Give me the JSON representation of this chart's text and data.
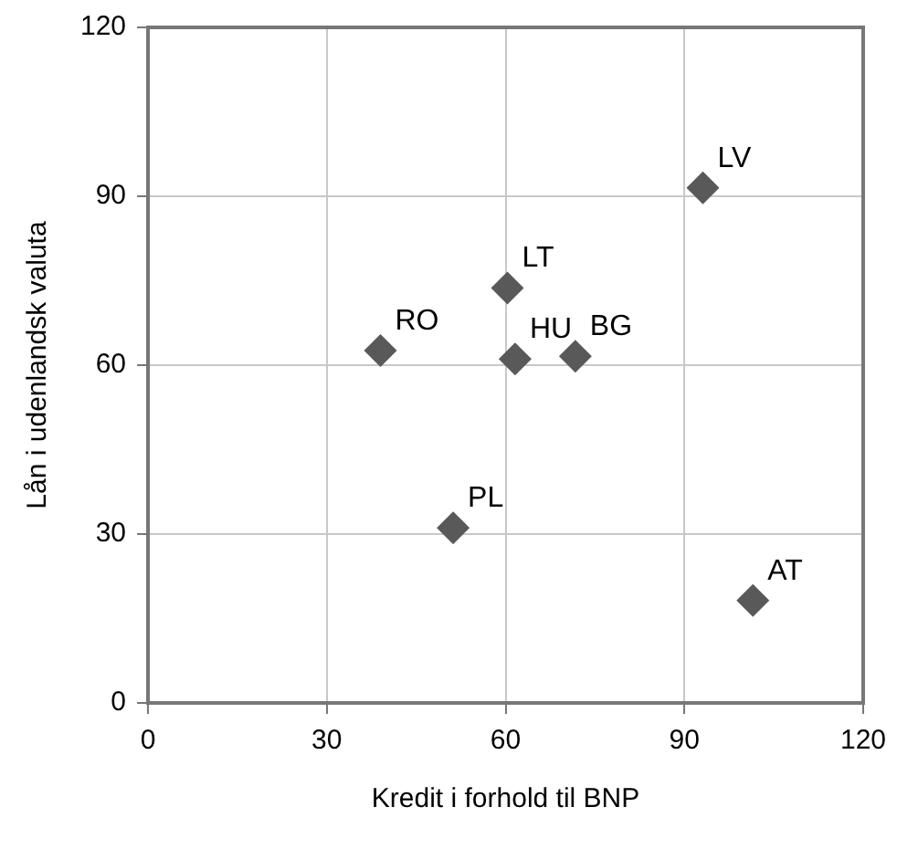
{
  "chart_data": {
    "type": "scatter",
    "xlabel": "Kredit i forhold til BNP",
    "ylabel": "Lån i udenlandsk valuta",
    "x": [
      93.1,
      60.3,
      39,
      61.6,
      71.7,
      51.2,
      101.5
    ],
    "series": [
      {
        "color": "#595959",
        "values": [
          91.5,
          73.7,
          62.6,
          61.1,
          61.6,
          31.1,
          18.2
        ]
      }
    ],
    "xlim": [
      0,
      120
    ],
    "ylim": [
      0,
      120
    ],
    "xticks": [
      0,
      30,
      60,
      90,
      120
    ],
    "yticks": [
      0,
      30,
      60,
      90,
      120
    ],
    "grid": true,
    "legend": false,
    "marker": "diamond",
    "annotations": [
      {
        "text": "LV",
        "x": 93.1,
        "y": 91.5
      },
      {
        "text": "LT",
        "x": 60.3,
        "y": 73.7
      },
      {
        "text": "RO",
        "x": 39,
        "y": 62.6
      },
      {
        "text": "HU",
        "x": 61.6,
        "y": 61.1
      },
      {
        "text": "BG",
        "x": 71.7,
        "y": 61.6
      },
      {
        "text": "PL",
        "x": 51.2,
        "y": 31.1
      },
      {
        "text": "AT",
        "x": 101.5,
        "y": 18.2
      }
    ]
  }
}
